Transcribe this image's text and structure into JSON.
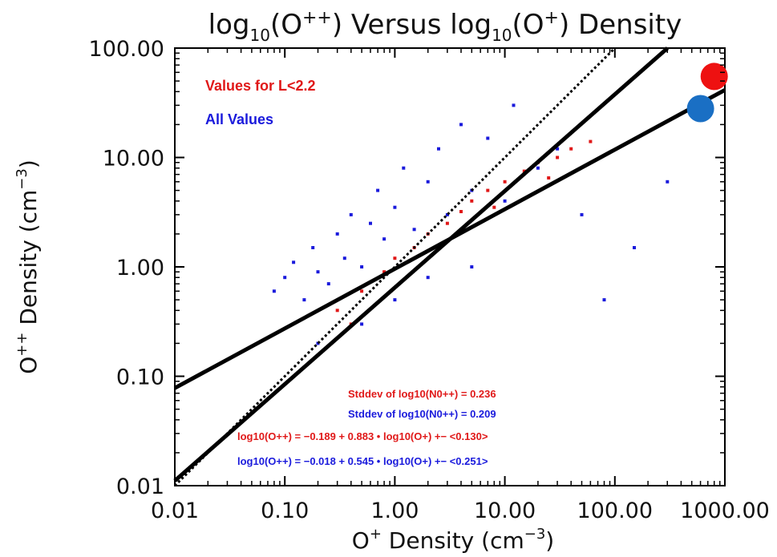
{
  "chart_data": {
    "type": "scatter",
    "title": {
      "main": "log",
      "sub1": "10",
      "mid1": "(O",
      "sup1": "++",
      "mid2": ") Versus log",
      "sub2": "10",
      "mid3": "(O",
      "sup2": "+",
      "end": ") Density"
    },
    "xlabel": {
      "main": "O",
      "sup": "+",
      "rest": " Density (cm",
      "sup2": "−3",
      "close": ")"
    },
    "ylabel": {
      "main": "O",
      "sup": "++",
      "rest": " Density (cm",
      "sup2": "−3",
      "close": ")"
    },
    "x_scale": "log",
    "y_scale": "log",
    "xlim": [
      0.01,
      1000.0
    ],
    "ylim": [
      0.01,
      100.0
    ],
    "x_tick_values": [
      0.01,
      0.1,
      1.0,
      10.0,
      100.0,
      1000.0
    ],
    "x_tick_labels": [
      "0.01",
      "0.10",
      "1.00",
      "10.00",
      "100.00",
      "1000.00"
    ],
    "y_tick_values": [
      0.01,
      0.1,
      1.0,
      10.0,
      100.0
    ],
    "y_tick_labels": [
      "0.01",
      "0.10",
      "1.00",
      "10.00",
      "100.00"
    ],
    "grid": false,
    "series": [
      {
        "name": "All Values",
        "color": "#1a1adc",
        "points": [
          [
            0.08,
            0.6
          ],
          [
            0.1,
            0.8
          ],
          [
            0.12,
            1.1
          ],
          [
            0.15,
            0.5
          ],
          [
            0.18,
            1.5
          ],
          [
            0.2,
            0.9
          ],
          [
            0.25,
            0.7
          ],
          [
            0.3,
            2.0
          ],
          [
            0.35,
            1.2
          ],
          [
            0.4,
            3.0
          ],
          [
            0.5,
            1.0
          ],
          [
            0.6,
            2.5
          ],
          [
            0.7,
            5.0
          ],
          [
            0.8,
            1.8
          ],
          [
            1.0,
            3.5
          ],
          [
            1.2,
            8.0
          ],
          [
            1.5,
            2.2
          ],
          [
            2.0,
            6.0
          ],
          [
            2.5,
            12.0
          ],
          [
            3.0,
            3.0
          ],
          [
            4.0,
            20.0
          ],
          [
            5.0,
            5.0
          ],
          [
            7.0,
            15.0
          ],
          [
            10.0,
            4.0
          ],
          [
            12.0,
            30.0
          ],
          [
            20.0,
            8.0
          ],
          [
            30.0,
            12.0
          ],
          [
            50.0,
            3.0
          ],
          [
            80.0,
            0.5
          ],
          [
            150.0,
            1.5
          ],
          [
            300.0,
            6.0
          ],
          [
            0.2,
            0.2
          ],
          [
            0.5,
            0.3
          ],
          [
            1.0,
            0.5
          ],
          [
            2.0,
            0.8
          ],
          [
            5.0,
            1.0
          ]
        ]
      },
      {
        "name": "Values for L<2.2",
        "color": "#e01818",
        "points": [
          [
            0.3,
            0.4
          ],
          [
            0.5,
            0.6
          ],
          [
            0.8,
            0.9
          ],
          [
            1.0,
            1.2
          ],
          [
            1.5,
            1.5
          ],
          [
            2.0,
            2.0
          ],
          [
            3.0,
            2.5
          ],
          [
            4.0,
            3.2
          ],
          [
            5.0,
            4.0
          ],
          [
            7.0,
            5.0
          ],
          [
            10.0,
            6.0
          ],
          [
            15.0,
            7.5
          ],
          [
            20.0,
            9.0
          ],
          [
            30.0,
            10.0
          ],
          [
            40.0,
            12.0
          ],
          [
            60.0,
            14.0
          ],
          [
            0.4,
            0.3
          ],
          [
            2.5,
            1.5
          ],
          [
            8.0,
            3.5
          ],
          [
            25.0,
            6.5
          ]
        ]
      }
    ],
    "fit_lines": [
      {
        "name": "steep",
        "intercept": -0.189,
        "slope": 0.883
      },
      {
        "name": "shallow",
        "intercept": -0.018,
        "slope": 0.545
      },
      {
        "name": "one-to-one",
        "intercept": 0.0,
        "slope": 1.0,
        "style": "dotted"
      }
    ],
    "markers": [
      {
        "x": 800.0,
        "y": 55.0,
        "color": "#ee1111"
      },
      {
        "x": 600.0,
        "y": 28.0,
        "color": "#1a6fc4"
      }
    ],
    "legend": [
      {
        "text": "Values for L<2.2",
        "color": "#e01818"
      },
      {
        "text": "All Values",
        "color": "#1a1adc"
      }
    ],
    "legend_position": "top-left",
    "annotations": [
      {
        "color": "#e01818",
        "text": "Stddev of log10(N0++) = 0.236"
      },
      {
        "color": "#1a1adc",
        "text": "Stddev of log10(N0++) = 0.209"
      },
      {
        "color": "#e01818",
        "text": "log10(O++) = −0.189 +  0.883 • log10(O+) +− <0.130>"
      },
      {
        "color": "#1a1adc",
        "text": "log10(O++) = −0.018 +  0.545 • log10(O+) +− <0.251>"
      }
    ]
  }
}
